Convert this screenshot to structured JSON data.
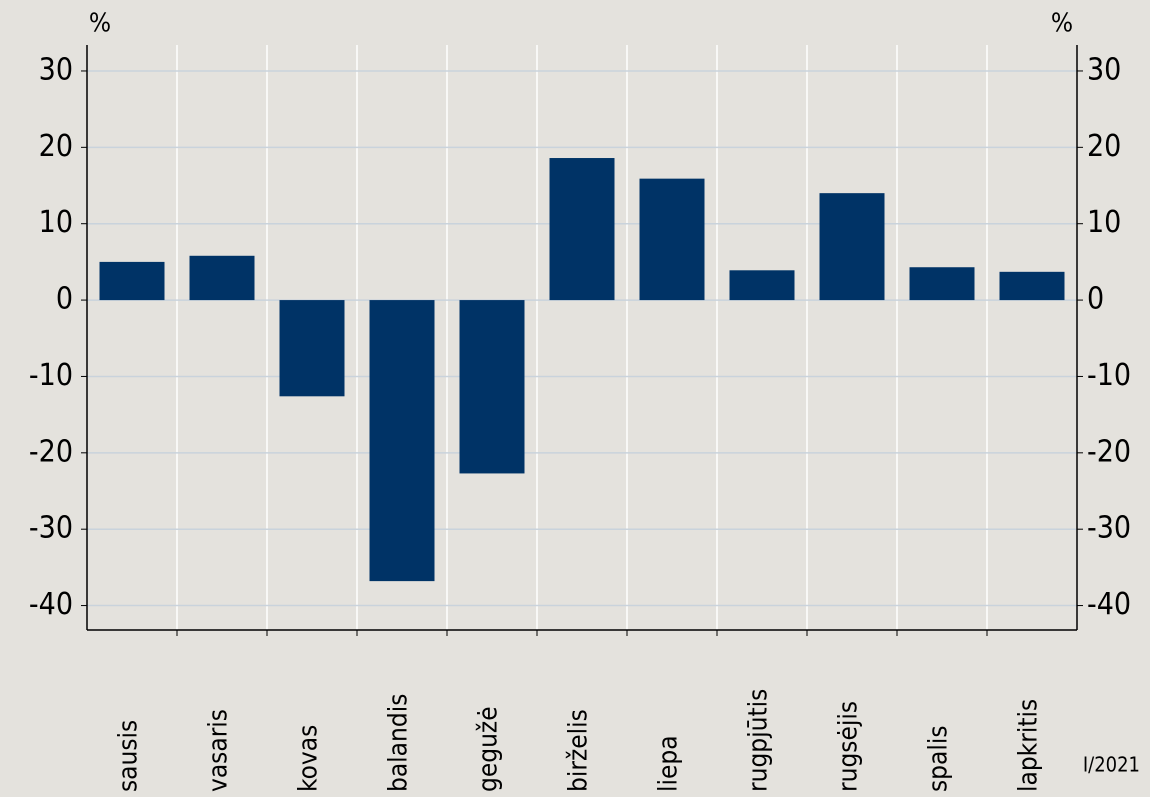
{
  "chart_data": {
    "type": "bar",
    "categories": [
      "sausis",
      "vasaris",
      "kovas",
      "balandis",
      "gegužė",
      "birželis",
      "liepa",
      "rugpjūtis",
      "rugsėjis",
      "spalis",
      "lapkritis"
    ],
    "values": [
      5.0,
      5.8,
      -12.6,
      -36.8,
      -22.7,
      18.6,
      15.9,
      3.9,
      14.0,
      4.3,
      3.7
    ],
    "color": "#003366",
    "ylabel": "%",
    "y2label": "%",
    "ylim": [
      -43.2,
      33.4
    ],
    "yticks": [
      -40,
      -30,
      -20,
      -10,
      0,
      10,
      20,
      30
    ],
    "y2lim": [
      -43.2,
      33.4
    ],
    "y2ticks": [
      -40,
      -30,
      -20,
      -10,
      0,
      10,
      20,
      30
    ],
    "grid": true,
    "note": "I/2021"
  }
}
